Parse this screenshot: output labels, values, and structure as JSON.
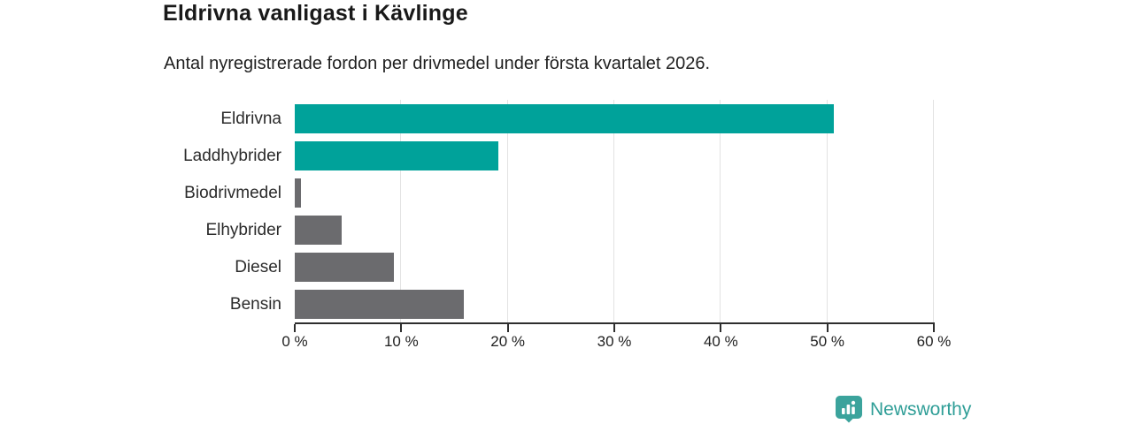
{
  "header": {
    "title": "Eldrivna vanligast i Kävlinge",
    "subtitle": "Antal nyregistrerade fordon per drivmedel under första kvartalet 2026."
  },
  "chart_data": {
    "type": "bar",
    "orientation": "horizontal",
    "title": "Eldrivna vanligast i Kävlinge",
    "subtitle": "Antal nyregistrerade fordon per drivmedel under första kvartalet 2026.",
    "categories": [
      "Eldrivna",
      "Laddhybrider",
      "Biodrivmedel",
      "Elhybrider",
      "Diesel",
      "Bensin"
    ],
    "values": [
      50.6,
      19.1,
      0.6,
      4.4,
      9.3,
      15.9
    ],
    "unit": "%",
    "xlim": [
      0,
      60
    ],
    "x_tick_labels": [
      "0 %",
      "10 %",
      "20 %",
      "30 %",
      "40 %",
      "50 %",
      "60 %"
    ],
    "grid": true,
    "legend": false,
    "bar_colors": [
      "#00a29a",
      "#00a29a",
      "#6b6b6e",
      "#6b6b6e",
      "#6b6b6e",
      "#6b6b6e"
    ],
    "highlight_color": "#00a29a",
    "default_color": "#6b6b6e",
    "gridline_color": "#e3e3e3",
    "axis_color": "#2e2e2e"
  },
  "footer": {
    "brand": "Newsworthy",
    "brand_color": "#2f9e97",
    "logo_icon": "newsworthy-speech-bubble-bar-chart-icon"
  }
}
